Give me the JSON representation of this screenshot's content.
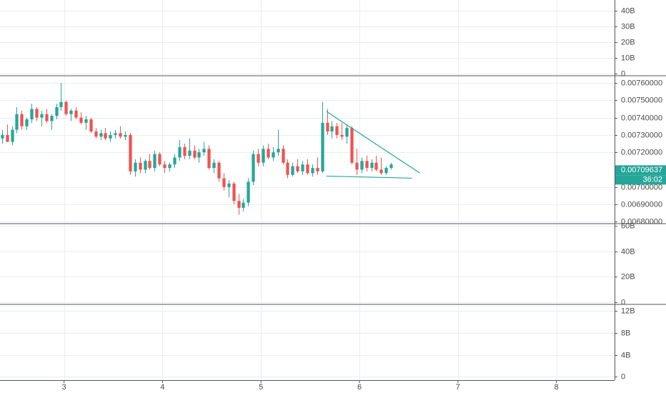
{
  "chart_data": [
    {
      "type": "indicator",
      "ylim": [
        -900000000,
        46800000000
      ],
      "yticks": [
        {
          "value": 0,
          "label": "0"
        },
        {
          "value": 10000000000,
          "label": "10B"
        },
        {
          "value": 20000000000,
          "label": "20B"
        },
        {
          "value": 30000000000,
          "label": "30B"
        },
        {
          "value": 40000000000,
          "label": "40B"
        }
      ]
    },
    {
      "type": "candlestick",
      "up_color": "#26a69a",
      "down_color": "#ef5350",
      "xlim": [
        2.35,
        8.59
      ],
      "xticks": [
        3,
        4,
        5,
        6,
        7,
        8
      ],
      "ylim": [
        0.006793,
        0.007637
      ],
      "yticks": [
        {
          "value": 0.0068,
          "label": "0.00680000"
        },
        {
          "value": 0.0069,
          "label": "0.00690000"
        },
        {
          "value": 0.007,
          "label": "0.00700000"
        },
        {
          "value": 0.0072,
          "label": "0.00720000"
        },
        {
          "value": 0.0073,
          "label": "0.00730000"
        },
        {
          "value": 0.0074,
          "label": "0.00740000"
        },
        {
          "value": 0.0075,
          "label": "0.00750000"
        },
        {
          "value": 0.0076,
          "label": "0.00760000"
        }
      ],
      "x": [
        2.37,
        2.42,
        2.47,
        2.52,
        2.57,
        2.62,
        2.67,
        2.72,
        2.77,
        2.82,
        2.87,
        2.92,
        2.97,
        3.02,
        3.07,
        3.12,
        3.17,
        3.22,
        3.27,
        3.32,
        3.37,
        3.42,
        3.47,
        3.52,
        3.57,
        3.62,
        3.67,
        3.72,
        3.77,
        3.82,
        3.87,
        3.92,
        3.97,
        4.02,
        4.07,
        4.12,
        4.17,
        4.22,
        4.27,
        4.32,
        4.37,
        4.42,
        4.47,
        4.52,
        4.57,
        4.62,
        4.67,
        4.72,
        4.77,
        4.82,
        4.87,
        4.92,
        4.97,
        5.02,
        5.07,
        5.12,
        5.17,
        5.22,
        5.27,
        5.32,
        5.37,
        5.42,
        5.47,
        5.52,
        5.57,
        5.62,
        5.67,
        5.72,
        5.77,
        5.82,
        5.87,
        5.92,
        5.97,
        6.02,
        6.07,
        6.12,
        6.17,
        6.22,
        6.27,
        6.32
      ],
      "open": [
        0.00728,
        0.0073,
        0.00726,
        0.00733,
        0.00742,
        0.00735,
        0.00739,
        0.00745,
        0.0074,
        0.00742,
        0.00738,
        0.00741,
        0.00746,
        0.00749,
        0.00742,
        0.00744,
        0.0074,
        0.00737,
        0.00739,
        0.00732,
        0.00729,
        0.00731,
        0.00728,
        0.0073,
        0.00731,
        0.00729,
        0.0073,
        0.00709,
        0.00714,
        0.0071,
        0.00715,
        0.00711,
        0.00719,
        0.00713,
        0.00711,
        0.00713,
        0.00717,
        0.00723,
        0.00718,
        0.00721,
        0.00717,
        0.0072,
        0.00722,
        0.00711,
        0.00714,
        0.00705,
        0.007,
        0.00702,
        0.00692,
        0.00688,
        0.00691,
        0.00703,
        0.00719,
        0.00714,
        0.00722,
        0.00717,
        0.0072,
        0.00722,
        0.00714,
        0.00707,
        0.00712,
        0.00709,
        0.00713,
        0.00708,
        0.00711,
        0.00709,
        0.00737,
        0.00732,
        0.00735,
        0.0073,
        0.00729,
        0.00734,
        0.00714,
        0.0071,
        0.00715,
        0.00711,
        0.00714,
        0.0071,
        0.00708,
        0.00711
      ],
      "high": [
        0.00733,
        0.00736,
        0.00735,
        0.00746,
        0.00744,
        0.0074,
        0.00748,
        0.00746,
        0.00744,
        0.00745,
        0.00742,
        0.00748,
        0.0076,
        0.0075,
        0.00745,
        0.00746,
        0.00743,
        0.00741,
        0.0074,
        0.00734,
        0.00733,
        0.00734,
        0.00732,
        0.00733,
        0.00735,
        0.00732,
        0.00731,
        0.00716,
        0.00717,
        0.00716,
        0.00719,
        0.00721,
        0.0072,
        0.00715,
        0.00714,
        0.00719,
        0.00727,
        0.00725,
        0.00728,
        0.00724,
        0.00722,
        0.00726,
        0.00724,
        0.00716,
        0.00715,
        0.00708,
        0.00704,
        0.00703,
        0.00696,
        0.00693,
        0.00705,
        0.00721,
        0.00722,
        0.00724,
        0.00725,
        0.00723,
        0.00733,
        0.00724,
        0.00716,
        0.00714,
        0.00716,
        0.00715,
        0.00716,
        0.00713,
        0.00717,
        0.00749,
        0.00745,
        0.00738,
        0.00737,
        0.00737,
        0.00736,
        0.00735,
        0.00722,
        0.00717,
        0.00718,
        0.00716,
        0.00718,
        0.00717,
        0.00712,
        0.00714
      ],
      "low": [
        0.00725,
        0.00726,
        0.00724,
        0.00731,
        0.00733,
        0.00733,
        0.00737,
        0.00738,
        0.00735,
        0.00737,
        0.00733,
        0.00739,
        0.00744,
        0.00741,
        0.00738,
        0.00739,
        0.00736,
        0.00733,
        0.00731,
        0.00728,
        0.00727,
        0.00727,
        0.00726,
        0.00728,
        0.00728,
        0.00727,
        0.00707,
        0.00706,
        0.00708,
        0.00708,
        0.0071,
        0.00709,
        0.00712,
        0.00708,
        0.00709,
        0.00711,
        0.00715,
        0.00716,
        0.00716,
        0.00716,
        0.00714,
        0.00718,
        0.0071,
        0.00708,
        0.00703,
        0.00698,
        0.00694,
        0.0069,
        0.00684,
        0.00686,
        0.00689,
        0.00701,
        0.00712,
        0.00712,
        0.00716,
        0.00715,
        0.00718,
        0.00713,
        0.00705,
        0.00706,
        0.00708,
        0.00707,
        0.00707,
        0.00706,
        0.00707,
        0.00708,
        0.0073,
        0.00728,
        0.00728,
        0.00727,
        0.00725,
        0.00713,
        0.00707,
        0.00708,
        0.00709,
        0.00709,
        0.00709,
        0.00707,
        0.00707,
        0.0071
      ],
      "close": [
        0.0073,
        0.00726,
        0.00733,
        0.00742,
        0.00735,
        0.00739,
        0.00745,
        0.0074,
        0.00742,
        0.00738,
        0.00741,
        0.00746,
        0.00749,
        0.00742,
        0.00744,
        0.0074,
        0.00737,
        0.00739,
        0.00732,
        0.00729,
        0.00731,
        0.00728,
        0.0073,
        0.00731,
        0.00729,
        0.0073,
        0.00709,
        0.00714,
        0.0071,
        0.00715,
        0.00711,
        0.00719,
        0.00713,
        0.00711,
        0.00713,
        0.00717,
        0.00723,
        0.00718,
        0.00721,
        0.00717,
        0.0072,
        0.00722,
        0.00711,
        0.00714,
        0.00705,
        0.007,
        0.00702,
        0.00692,
        0.00688,
        0.00691,
        0.00703,
        0.00719,
        0.00714,
        0.00722,
        0.00717,
        0.0072,
        0.00722,
        0.00714,
        0.00707,
        0.00712,
        0.00709,
        0.00713,
        0.00708,
        0.00711,
        0.00709,
        0.00737,
        0.00732,
        0.00735,
        0.0073,
        0.00729,
        0.00734,
        0.00714,
        0.0071,
        0.00715,
        0.00711,
        0.00714,
        0.0071,
        0.00708,
        0.00711,
        0.00713
      ],
      "last_price": 0.00709637,
      "countdown": "36:02",
      "trend_line_color": "#26a69a",
      "trend_lines": [
        {
          "x": [
            5.663,
            6.614
          ],
          "y": [
            0.007436,
            0.00708
          ]
        },
        {
          "x": [
            5.663,
            6.534
          ],
          "y": [
            0.007063,
            0.007051
          ]
        }
      ]
    },
    {
      "type": "indicator",
      "ylim": [
        -1000000000,
        61000000000
      ],
      "yticks": [
        {
          "value": 0,
          "label": "0"
        },
        {
          "value": 20000000000,
          "label": "20B"
        },
        {
          "value": 40000000000,
          "label": "40B"
        },
        {
          "value": 60000000000,
          "label": "60B"
        }
      ]
    },
    {
      "type": "indicator",
      "ylim": [
        -600000000,
        13100000000
      ],
      "yticks": [
        {
          "value": 0,
          "label": "0"
        },
        {
          "value": 4000000000,
          "label": "4B"
        },
        {
          "value": 8000000000,
          "label": "8B"
        },
        {
          "value": 12000000000,
          "label": "12B"
        }
      ]
    }
  ]
}
